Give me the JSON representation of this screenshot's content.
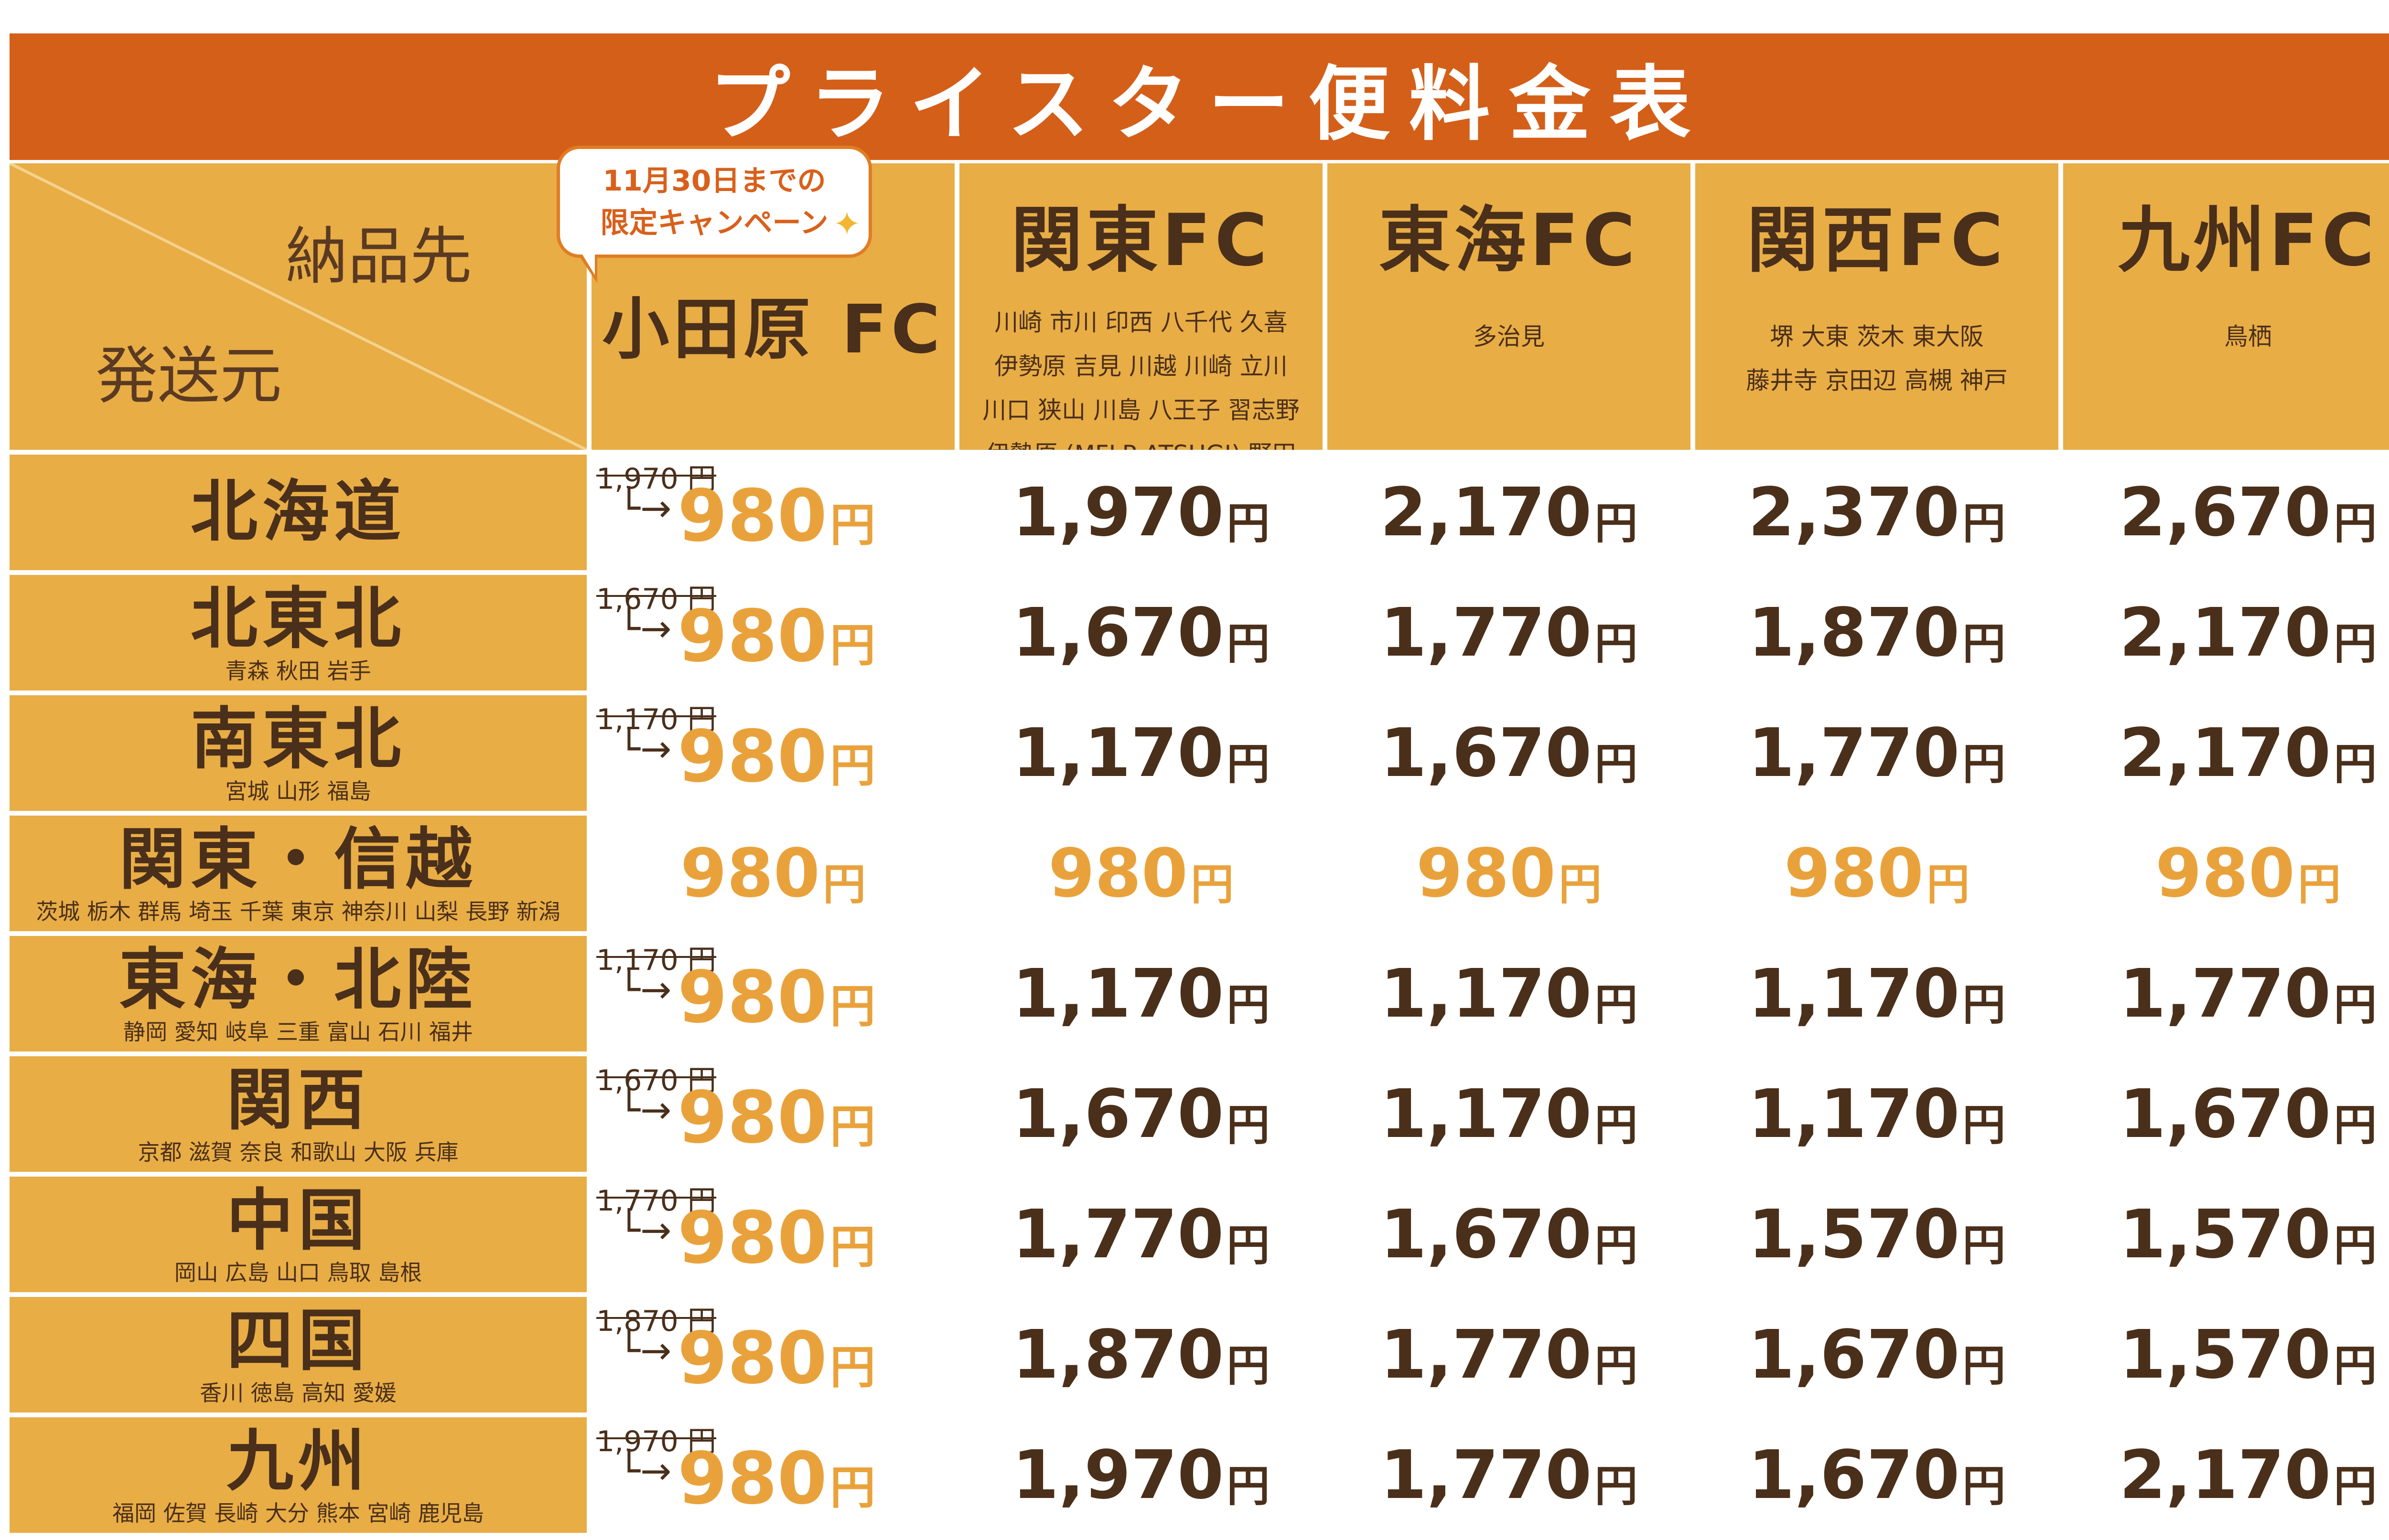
{
  "title": "プライスター便料金表",
  "header": {
    "dest_label": "納品先",
    "src_label": "発送元",
    "campaign_line1": "11月30日までの",
    "campaign_line2": "限定キャンペーン",
    "columns": [
      {
        "name": "小田原 FC",
        "cities": []
      },
      {
        "name": "関東FC",
        "cities": [
          "川崎 市川 印西 八千代 久喜",
          "伊勢原 吉見 川越 川崎 立川",
          "川口 狭山 川島 八王子 習志野",
          "伊勢原 (MFLP ATSUGI) 野田"
        ]
      },
      {
        "name": "東海FC",
        "cities": [
          "多治見"
        ]
      },
      {
        "name": "関西FC",
        "cities": [
          "堺 大東 茨木 東大阪",
          "藤井寺 京田辺 高槻 神戸"
        ]
      },
      {
        "name": "九州FC",
        "cities": [
          "鳥栖"
        ]
      }
    ]
  },
  "yen": "円",
  "arrow": "└→",
  "rows": [
    {
      "name": "北海道",
      "sub": "",
      "old": "1,970 円",
      "campaign": "980",
      "prices": [
        "1,970",
        "2,170",
        "2,370",
        "2,670"
      ],
      "orange": false
    },
    {
      "name": "北東北",
      "sub": "青森 秋田 岩手",
      "old": "1,670 円",
      "campaign": "980",
      "prices": [
        "1,670",
        "1,770",
        "1,870",
        "2,170"
      ],
      "orange": false
    },
    {
      "name": "南東北",
      "sub": "宮城 山形 福島",
      "old": "1,170 円",
      "campaign": "980",
      "prices": [
        "1,170",
        "1,670",
        "1,770",
        "2,170"
      ],
      "orange": false
    },
    {
      "name": "関東・信越",
      "sub": "茨城 栃木 群馬 埼玉 千葉 東京 神奈川 山梨 長野 新潟",
      "old": "",
      "campaign": "980",
      "prices": [
        "980",
        "980",
        "980",
        "980"
      ],
      "orange": true
    },
    {
      "name": "東海・北陸",
      "sub": "静岡 愛知 岐阜 三重 富山 石川 福井",
      "old": "1,170 円",
      "campaign": "980",
      "prices": [
        "1,170",
        "1,170",
        "1,170",
        "1,770"
      ],
      "orange": false
    },
    {
      "name": "関西",
      "sub": "京都 滋賀 奈良 和歌山 大阪 兵庫",
      "old": "1,670 円",
      "campaign": "980",
      "prices": [
        "1,670",
        "1,170",
        "1,170",
        "1,670"
      ],
      "orange": false
    },
    {
      "name": "中国",
      "sub": "岡山 広島 山口 鳥取 島根",
      "old": "1,770 円",
      "campaign": "980",
      "prices": [
        "1,770",
        "1,670",
        "1,570",
        "1,570"
      ],
      "orange": false
    },
    {
      "name": "四国",
      "sub": "香川 徳島 高知 愛媛",
      "old": "1,870 円",
      "campaign": "980",
      "prices": [
        "1,870",
        "1,770",
        "1,670",
        "1,570"
      ],
      "orange": false
    },
    {
      "name": "九州",
      "sub": "福岡 佐賀 長崎 大分 熊本 宮崎 鹿児島",
      "old": "1,970 円",
      "campaign": "980",
      "prices": [
        "1,970",
        "1,770",
        "1,670",
        "2,170"
      ],
      "orange": false
    }
  ],
  "colors": {
    "title_bg": "#d45f19",
    "cell_bg": "#e8ad45",
    "accent": "#e9a23b",
    "text": "#4a2f1a"
  },
  "icons": {
    "sparkle": "sparkle-icon"
  }
}
